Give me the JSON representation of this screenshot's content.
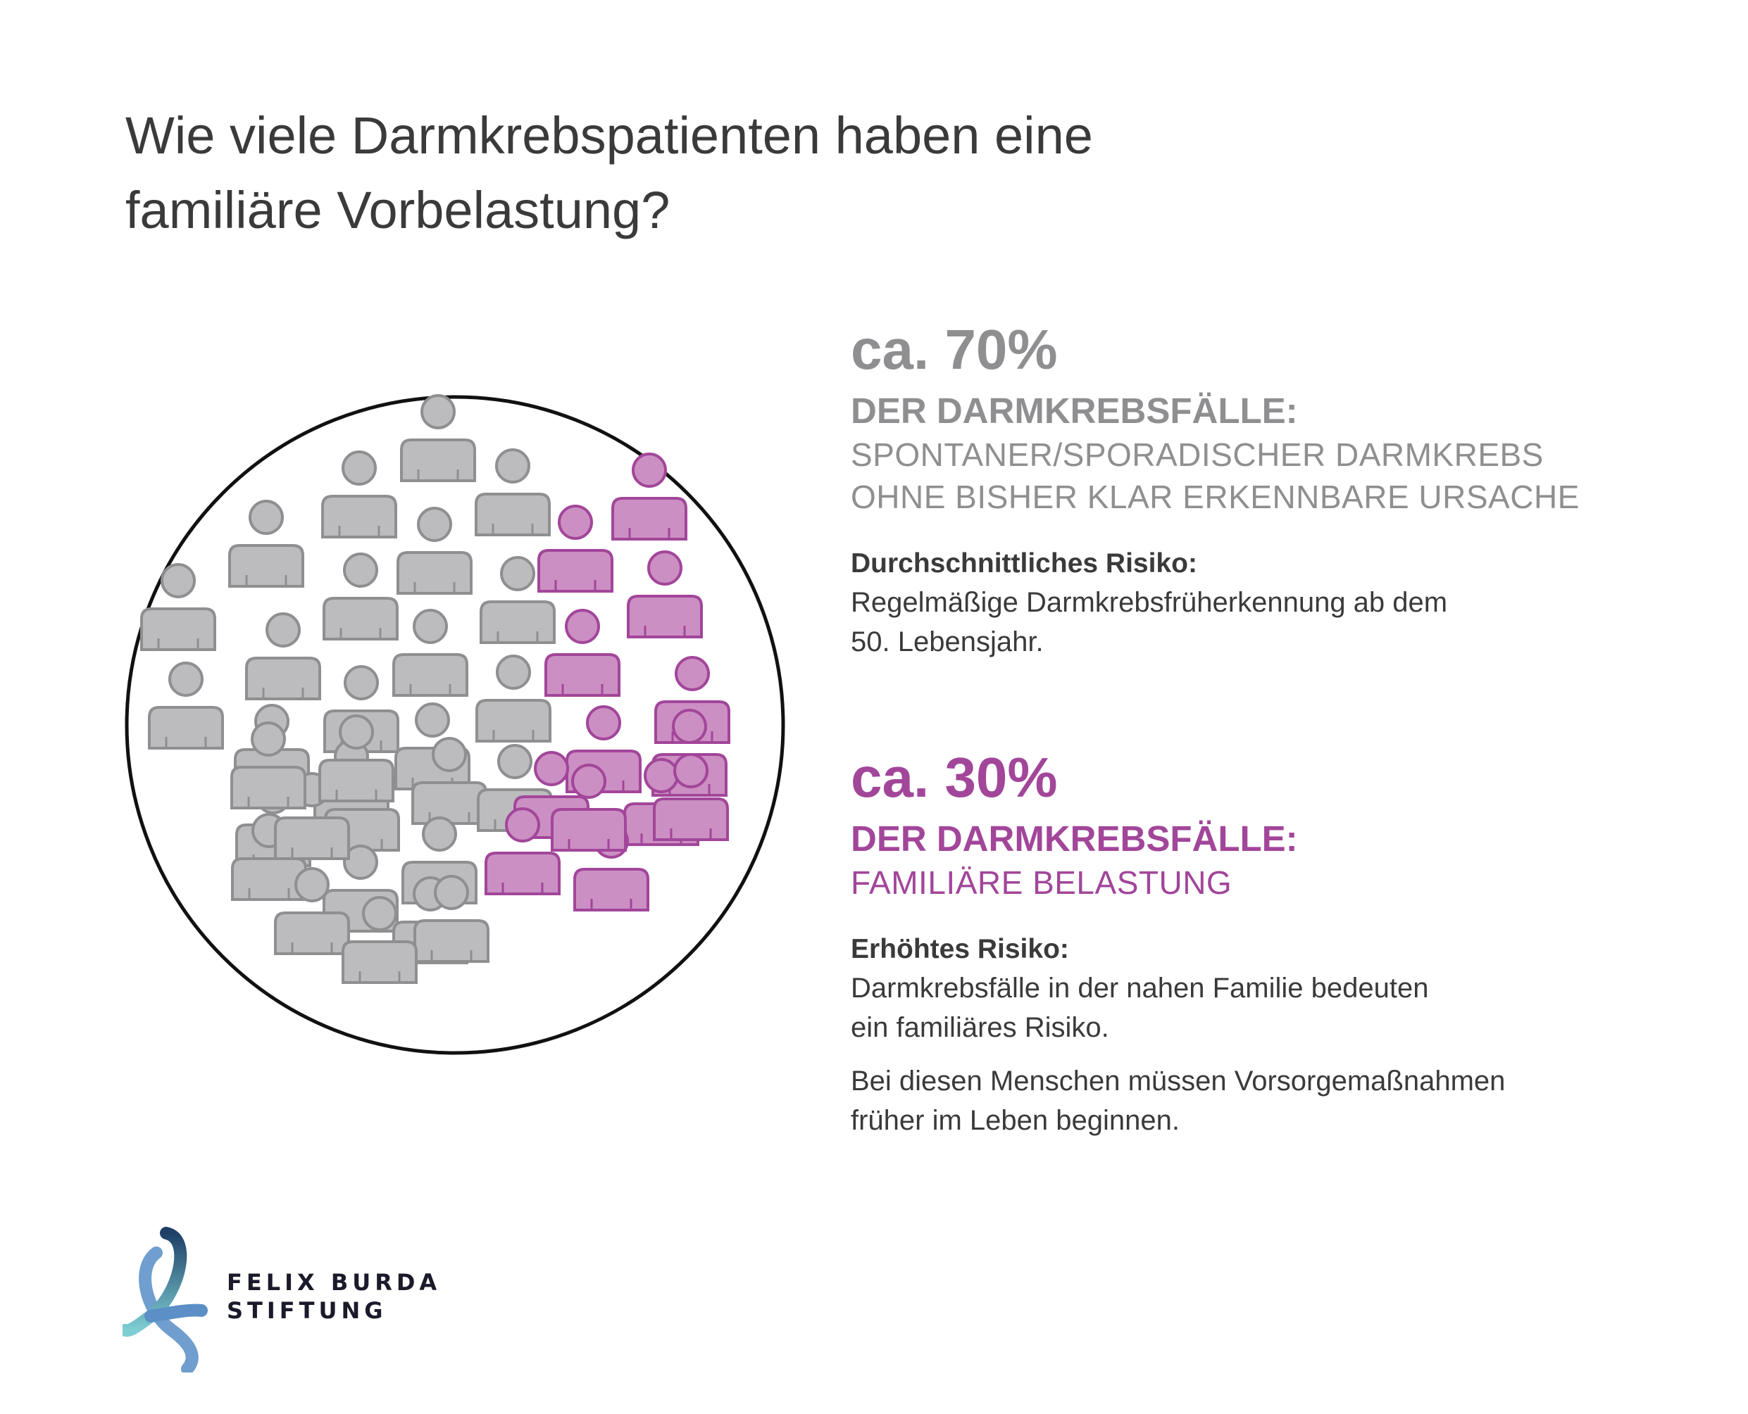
{
  "title": {
    "line1": "Wie viele Darmkrebspatienten haben eine",
    "line2": "familiäre Vorbelastung?"
  },
  "colors": {
    "gray_figure": "#bcbcbe",
    "gray_outline": "#8f8f91",
    "purple_figure": "#cc8fc3",
    "purple_outline": "#a2469a",
    "text_dark": "#3a3a3a",
    "text_gray": "#8f8f91",
    "text_purple": "#a2469a"
  },
  "pictogram": {
    "gray_count": 30,
    "purple_count": 13
  },
  "sporadic": {
    "percent": "ca. 70%",
    "heading": "DER DARMKREBSFÄLLE:",
    "sub_line1": "SPONTANER/SPORADISCHER DARMKREBS",
    "sub_line2": "OHNE BISHER KLAR ERKENNBARE URSACHE",
    "risk_title": "Durchschnittliches Risiko:",
    "risk_line1": "Regelmäßige Darmkrebsfrüherkennung ab dem",
    "risk_line2": "50. Lebensjahr."
  },
  "familial": {
    "percent": "ca. 30%",
    "heading": "DER DARMKREBSFÄLLE:",
    "sub_line1": "FAMILIÄRE BELASTUNG",
    "risk_title": "Erhöhtes Risiko:",
    "risk_line1": "Darmkrebsfälle in der nahen Familie bedeuten",
    "risk_line2": "ein familiäres Risiko.",
    "extra_line1": "Bei diesen Menschen müssen Vorsorgemaßnahmen",
    "extra_line2": "früher im Leben beginnen."
  },
  "logo": {
    "line1": "FELIX BURDA",
    "line2": "STIFTUNG"
  }
}
